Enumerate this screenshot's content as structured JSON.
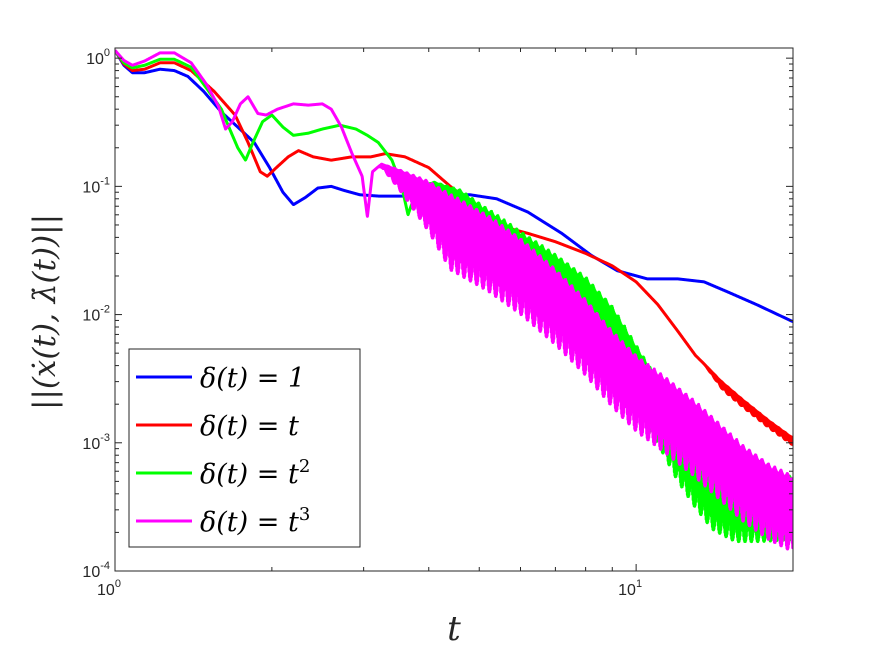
{
  "chart_data": {
    "type": "line",
    "title": "",
    "xlabel": "t",
    "ylabel": "||(ẋ(t), λ̇(t))||",
    "xscale": "log",
    "yscale": "log",
    "xlim": [
      1,
      20
    ],
    "ylim": [
      0.0001,
      1.2
    ],
    "grid": false,
    "legend_position": "bottom-left",
    "x_ticks": [
      {
        "value": 1,
        "base": "10",
        "exp": "0"
      },
      {
        "value": 10,
        "base": "10",
        "exp": "1"
      }
    ],
    "y_ticks": [
      {
        "value": 0.0001,
        "base": "10",
        "exp": "-4"
      },
      {
        "value": 0.001,
        "base": "10",
        "exp": "-3"
      },
      {
        "value": 0.01,
        "base": "10",
        "exp": "-2"
      },
      {
        "value": 0.1,
        "base": "10",
        "exp": "-1"
      },
      {
        "value": 1,
        "base": "10",
        "exp": "0"
      }
    ],
    "series": [
      {
        "name": "δ(t) = 1",
        "legend_rhs": "1",
        "legend_exp": "",
        "color": "#0000ff",
        "oscillation": {
          "start": 0,
          "amplitude": 0
        },
        "points": [
          [
            1.0,
            1.15
          ],
          [
            1.04,
            0.88
          ],
          [
            1.08,
            0.77
          ],
          [
            1.14,
            0.77
          ],
          [
            1.22,
            0.82
          ],
          [
            1.3,
            0.8
          ],
          [
            1.38,
            0.72
          ],
          [
            1.48,
            0.55
          ],
          [
            1.6,
            0.38
          ],
          [
            1.72,
            0.29
          ],
          [
            1.85,
            0.22
          ],
          [
            1.98,
            0.14
          ],
          [
            2.1,
            0.09
          ],
          [
            2.2,
            0.072
          ],
          [
            2.32,
            0.082
          ],
          [
            2.45,
            0.097
          ],
          [
            2.6,
            0.1
          ],
          [
            2.75,
            0.093
          ],
          [
            2.95,
            0.086
          ],
          [
            3.2,
            0.084
          ],
          [
            3.6,
            0.084
          ],
          [
            4.2,
            0.085
          ],
          [
            4.8,
            0.086
          ],
          [
            5.4,
            0.08
          ],
          [
            6.2,
            0.063
          ],
          [
            7.2,
            0.043
          ],
          [
            8.2,
            0.029
          ],
          [
            9.2,
            0.022
          ],
          [
            10.5,
            0.019
          ],
          [
            12.0,
            0.019
          ],
          [
            13.5,
            0.018
          ],
          [
            15.0,
            0.015
          ],
          [
            17.0,
            0.012
          ],
          [
            20.0,
            0.0088
          ]
        ]
      },
      {
        "name": "δ(t) = t",
        "legend_rhs": "t",
        "legend_exp": "",
        "color": "#ff0000",
        "oscillation": {
          "start": 13.5,
          "amplitude": 0.06
        },
        "points": [
          [
            1.0,
            1.15
          ],
          [
            1.04,
            0.9
          ],
          [
            1.08,
            0.8
          ],
          [
            1.14,
            0.82
          ],
          [
            1.22,
            0.92
          ],
          [
            1.3,
            0.92
          ],
          [
            1.4,
            0.8
          ],
          [
            1.55,
            0.55
          ],
          [
            1.7,
            0.36
          ],
          [
            1.8,
            0.22
          ],
          [
            1.9,
            0.13
          ],
          [
            1.96,
            0.12
          ],
          [
            2.04,
            0.14
          ],
          [
            2.15,
            0.17
          ],
          [
            2.25,
            0.19
          ],
          [
            2.4,
            0.17
          ],
          [
            2.6,
            0.16
          ],
          [
            2.85,
            0.17
          ],
          [
            3.1,
            0.17
          ],
          [
            3.3,
            0.18
          ],
          [
            3.6,
            0.17
          ],
          [
            4.0,
            0.14
          ],
          [
            4.4,
            0.1
          ],
          [
            5.0,
            0.067
          ],
          [
            5.6,
            0.048
          ],
          [
            6.2,
            0.043
          ],
          [
            7.0,
            0.037
          ],
          [
            8.0,
            0.03
          ],
          [
            9.0,
            0.024
          ],
          [
            10.0,
            0.018
          ],
          [
            11.0,
            0.012
          ],
          [
            12.0,
            0.0075
          ],
          [
            13.0,
            0.0048
          ],
          [
            14.5,
            0.0031
          ],
          [
            16.0,
            0.0022
          ],
          [
            18.0,
            0.0015
          ],
          [
            20.0,
            0.0011
          ]
        ]
      },
      {
        "name": "δ(t) = t²",
        "legend_rhs": "t",
        "legend_exp": "2",
        "color": "#00ff00",
        "oscillation": {
          "start": 3.9,
          "amplitude": 0.55
        },
        "points": [
          [
            1.0,
            1.15
          ],
          [
            1.04,
            0.92
          ],
          [
            1.08,
            0.84
          ],
          [
            1.14,
            0.88
          ],
          [
            1.22,
            0.98
          ],
          [
            1.3,
            0.98
          ],
          [
            1.4,
            0.85
          ],
          [
            1.5,
            0.58
          ],
          [
            1.6,
            0.4
          ],
          [
            1.66,
            0.28
          ],
          [
            1.72,
            0.2
          ],
          [
            1.78,
            0.16
          ],
          [
            1.84,
            0.22
          ],
          [
            1.92,
            0.32
          ],
          [
            2.0,
            0.36
          ],
          [
            2.1,
            0.29
          ],
          [
            2.2,
            0.25
          ],
          [
            2.35,
            0.26
          ],
          [
            2.5,
            0.28
          ],
          [
            2.7,
            0.3
          ],
          [
            2.9,
            0.28
          ],
          [
            3.05,
            0.25
          ],
          [
            3.2,
            0.22
          ],
          [
            3.4,
            0.16
          ],
          [
            3.55,
            0.1
          ],
          [
            3.65,
            0.06
          ],
          [
            3.72,
            0.075
          ],
          [
            3.85,
            0.1
          ],
          [
            4.1,
            0.11
          ],
          [
            4.6,
            0.1
          ],
          [
            5.2,
            0.075
          ],
          [
            6.0,
            0.05
          ],
          [
            7.0,
            0.033
          ],
          [
            8.0,
            0.022
          ],
          [
            9.0,
            0.013
          ],
          [
            10.0,
            0.0065
          ],
          [
            11.0,
            0.0035
          ],
          [
            12.0,
            0.0018
          ],
          [
            13.0,
            0.0011
          ],
          [
            14.0,
            0.00075
          ],
          [
            15.5,
            0.0006
          ],
          [
            17.0,
            0.0006
          ],
          [
            20.0,
            0.00062
          ]
        ]
      },
      {
        "name": "δ(t) = t³",
        "legend_rhs": "t",
        "legend_exp": "3",
        "color": "#ff00ff",
        "oscillation": {
          "start": 3.2,
          "amplitude": 0.65
        },
        "points": [
          [
            1.0,
            1.15
          ],
          [
            1.04,
            0.96
          ],
          [
            1.08,
            0.88
          ],
          [
            1.14,
            0.95
          ],
          [
            1.22,
            1.1
          ],
          [
            1.3,
            1.1
          ],
          [
            1.4,
            0.92
          ],
          [
            1.5,
            0.62
          ],
          [
            1.58,
            0.42
          ],
          [
            1.63,
            0.28
          ],
          [
            1.68,
            0.32
          ],
          [
            1.74,
            0.44
          ],
          [
            1.8,
            0.5
          ],
          [
            1.88,
            0.37
          ],
          [
            1.95,
            0.36
          ],
          [
            2.05,
            0.4
          ],
          [
            2.2,
            0.44
          ],
          [
            2.35,
            0.43
          ],
          [
            2.5,
            0.44
          ],
          [
            2.6,
            0.4
          ],
          [
            2.72,
            0.29
          ],
          [
            2.85,
            0.18
          ],
          [
            2.98,
            0.12
          ],
          [
            3.05,
            0.058
          ],
          [
            3.12,
            0.13
          ],
          [
            3.25,
            0.15
          ],
          [
            3.5,
            0.14
          ],
          [
            4.0,
            0.12
          ],
          [
            4.5,
            0.095
          ],
          [
            5.2,
            0.068
          ],
          [
            6.0,
            0.045
          ],
          [
            7.0,
            0.026
          ],
          [
            8.0,
            0.015
          ],
          [
            9.0,
            0.0085
          ],
          [
            10.0,
            0.0055
          ],
          [
            11.5,
            0.0036
          ],
          [
            13.0,
            0.0024
          ],
          [
            14.5,
            0.0016
          ],
          [
            16.0,
            0.0011
          ],
          [
            18.0,
            0.00078
          ],
          [
            20.0,
            0.00063
          ]
        ]
      }
    ]
  }
}
